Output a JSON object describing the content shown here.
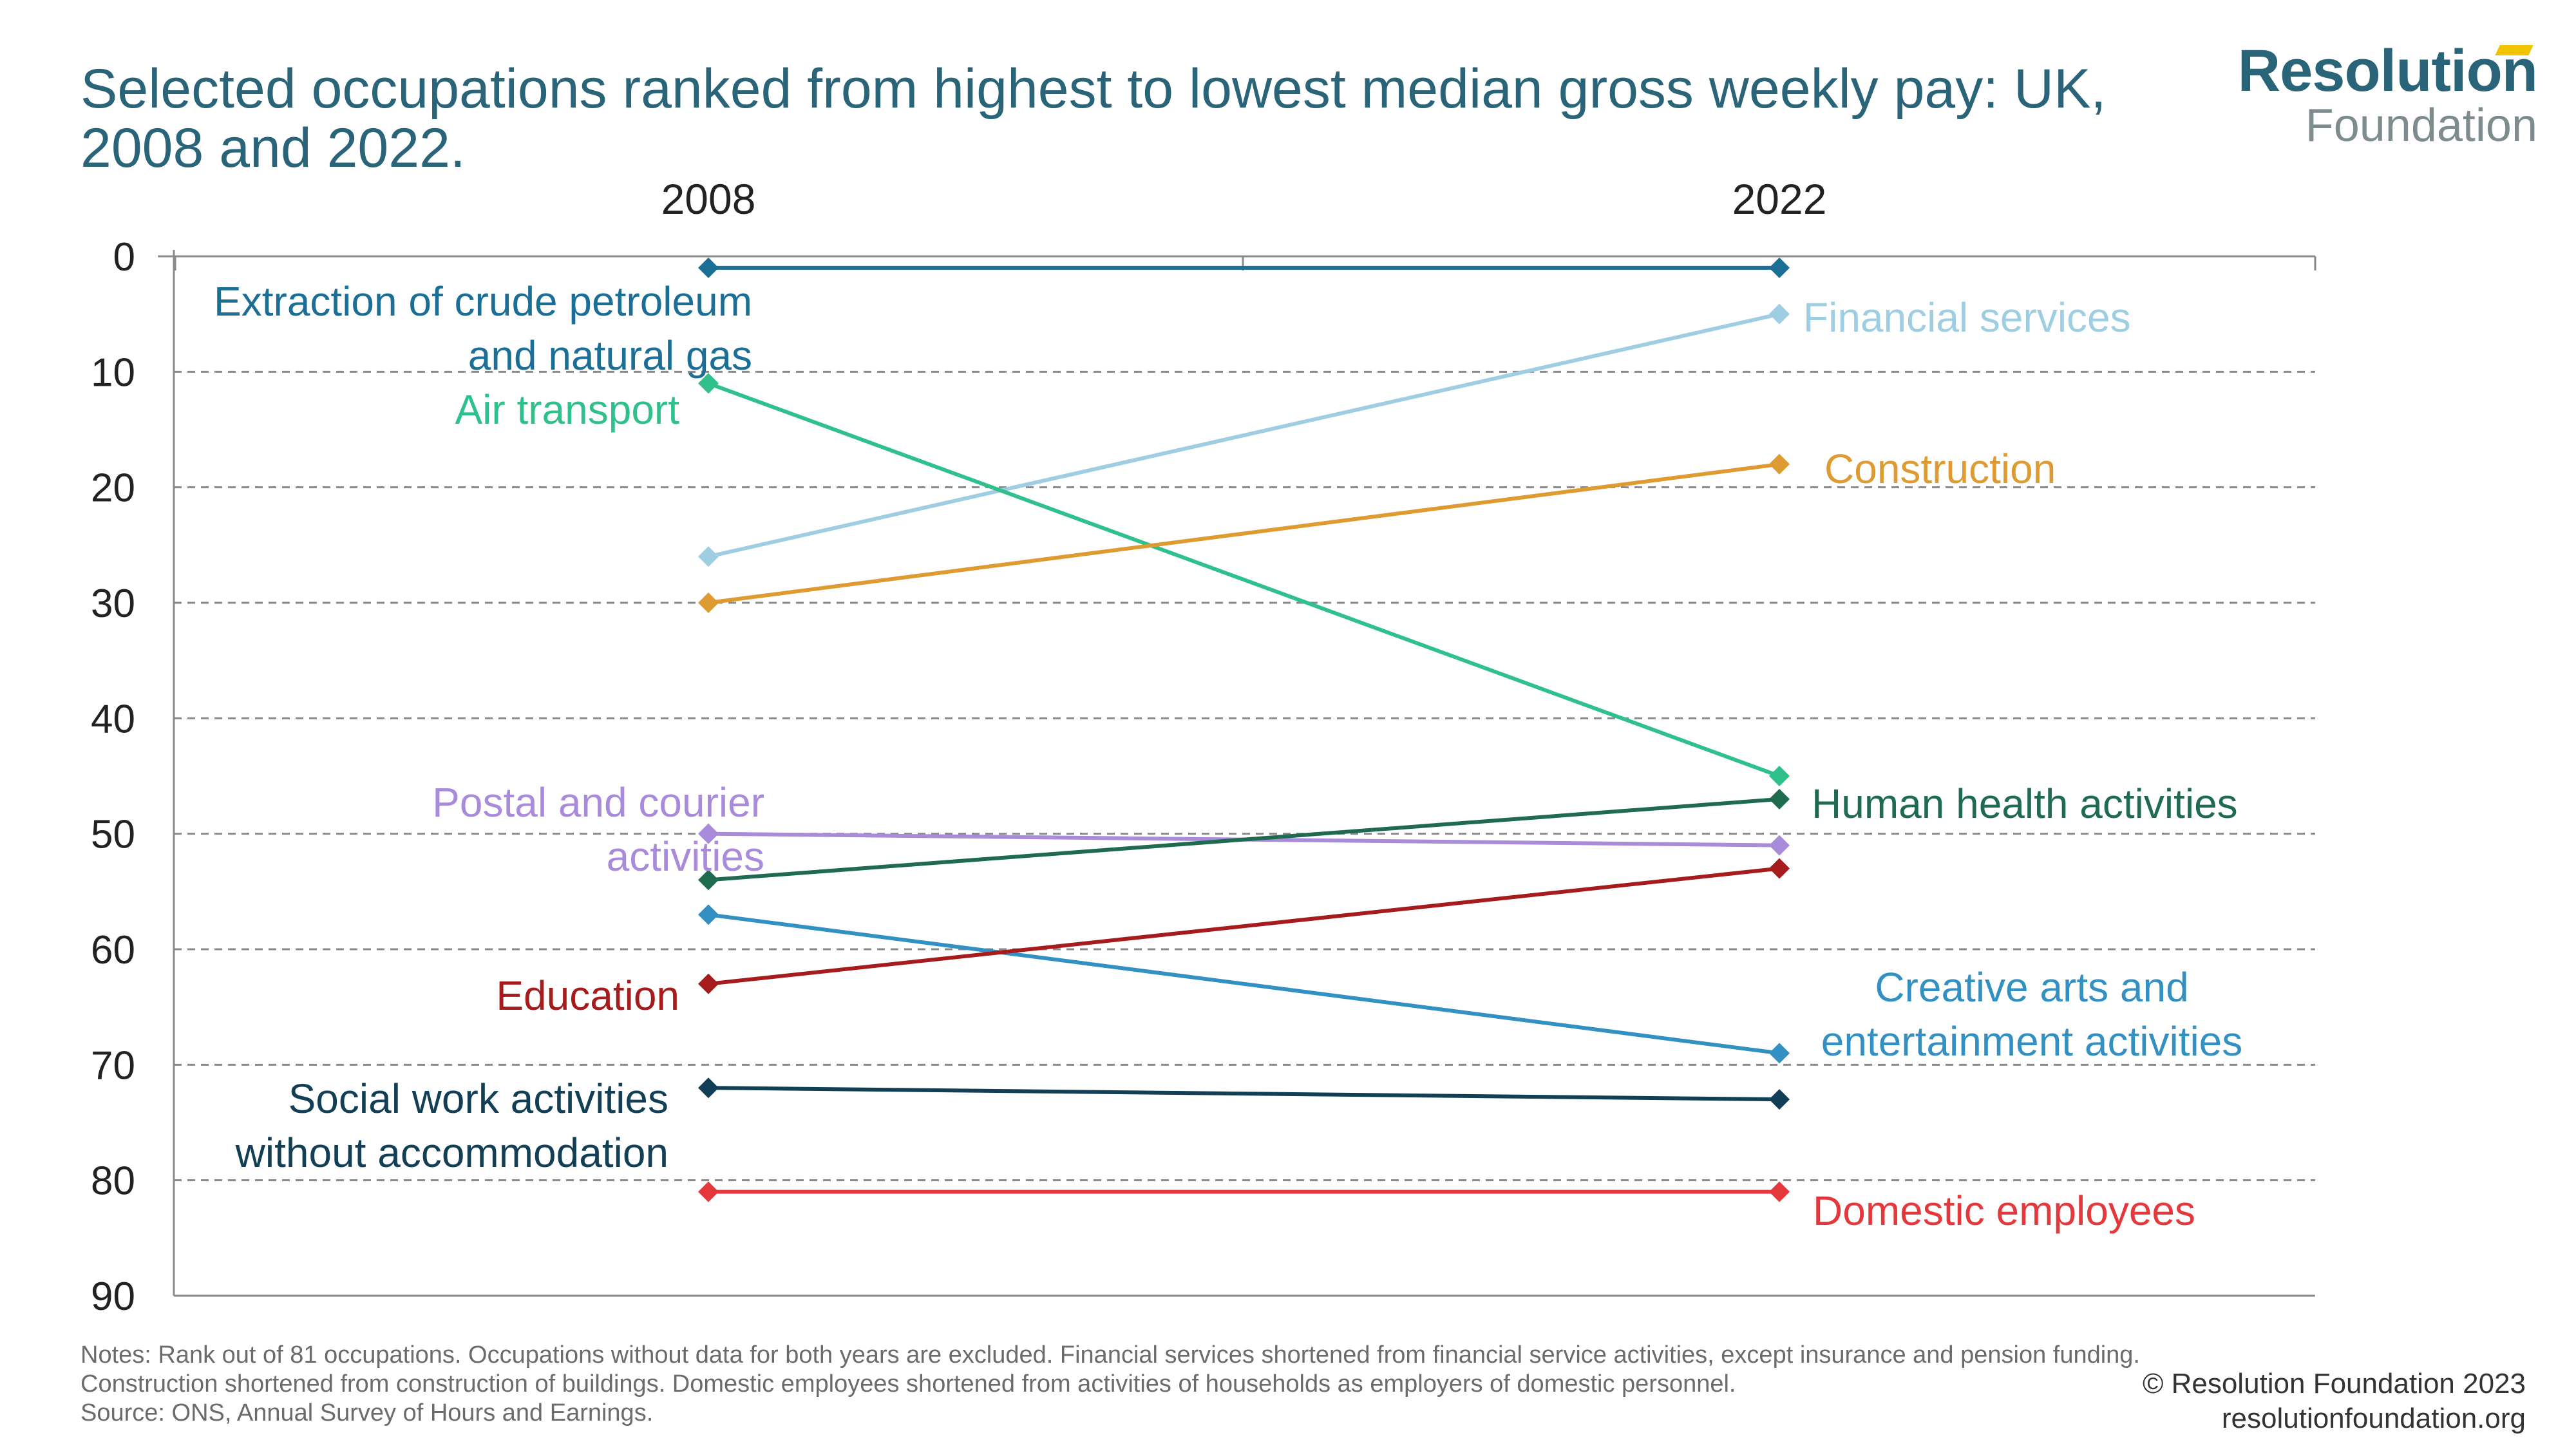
{
  "title": "Selected occupations ranked from highest to lowest median gross weekly pay: UK, 2008 and 2022.",
  "logo": {
    "line1": "Resolution",
    "line2": "Foundation"
  },
  "notes": "Notes: Rank out of 81 occupations. Occupations without data for both years are excluded. Financial services shortened from financial service activities, except insurance and pension funding. Construction shortened from construction of buildings. Domestic employees shortened from activities of households as employers of domestic personnel.",
  "source": "Source: ONS, Annual Survey of Hours and Earnings.",
  "credit": {
    "line1": "© Resolution Foundation 2023",
    "line2": "resolutionfoundation.org"
  },
  "chart_data": {
    "type": "line",
    "x": [
      "2008",
      "2022"
    ],
    "ylim": [
      0,
      90
    ],
    "yticks": [
      0,
      10,
      20,
      30,
      40,
      50,
      60,
      70,
      80,
      90
    ],
    "y_inverted": true,
    "grid": true,
    "series": [
      {
        "name": "Extraction of crude petroleum and natural gas",
        "values": [
          1,
          1
        ],
        "color": "#1b6e96",
        "label_side": "left",
        "label_lines": [
          "Extraction of crude petroleum",
          "and natural gas"
        ]
      },
      {
        "name": "Financial services",
        "values": [
          26,
          5
        ],
        "color": "#9fcde2",
        "label_side": "right",
        "label_lines": [
          "Financial services"
        ]
      },
      {
        "name": "Air transport",
        "values": [
          11,
          45
        ],
        "color": "#30c08c",
        "label_side": "left",
        "label_lines": [
          "Air transport"
        ]
      },
      {
        "name": "Construction",
        "values": [
          30,
          18
        ],
        "color": "#dd9b32",
        "label_side": "right",
        "label_lines": [
          "Construction"
        ]
      },
      {
        "name": "Postal and courier activities",
        "values": [
          50,
          51
        ],
        "color": "#a98bdc",
        "label_side": "left",
        "label_lines": [
          "Postal and courier",
          "activities"
        ]
      },
      {
        "name": "Human health activities",
        "values": [
          54,
          47
        ],
        "color": "#1e6b50",
        "label_side": "right",
        "label_lines": [
          "Human health activities"
        ]
      },
      {
        "name": "Creative arts and entertainment activities",
        "values": [
          57,
          69
        ],
        "color": "#3390c2",
        "label_side": "right",
        "label_lines": [
          "Creative arts and",
          "entertainment activities"
        ]
      },
      {
        "name": "Education",
        "values": [
          63,
          53
        ],
        "color": "#a61c1c",
        "label_side": "left",
        "label_lines": [
          "Education"
        ]
      },
      {
        "name": "Social work activities without accommodation",
        "values": [
          72,
          73
        ],
        "color": "#123f55",
        "label_side": "left",
        "label_lines": [
          "Social work activities",
          "without accommodation"
        ]
      },
      {
        "name": "Domestic employees",
        "values": [
          81,
          81
        ],
        "color": "#e5383c",
        "label_side": "right",
        "label_lines": [
          "Domestic employees"
        ]
      }
    ]
  }
}
